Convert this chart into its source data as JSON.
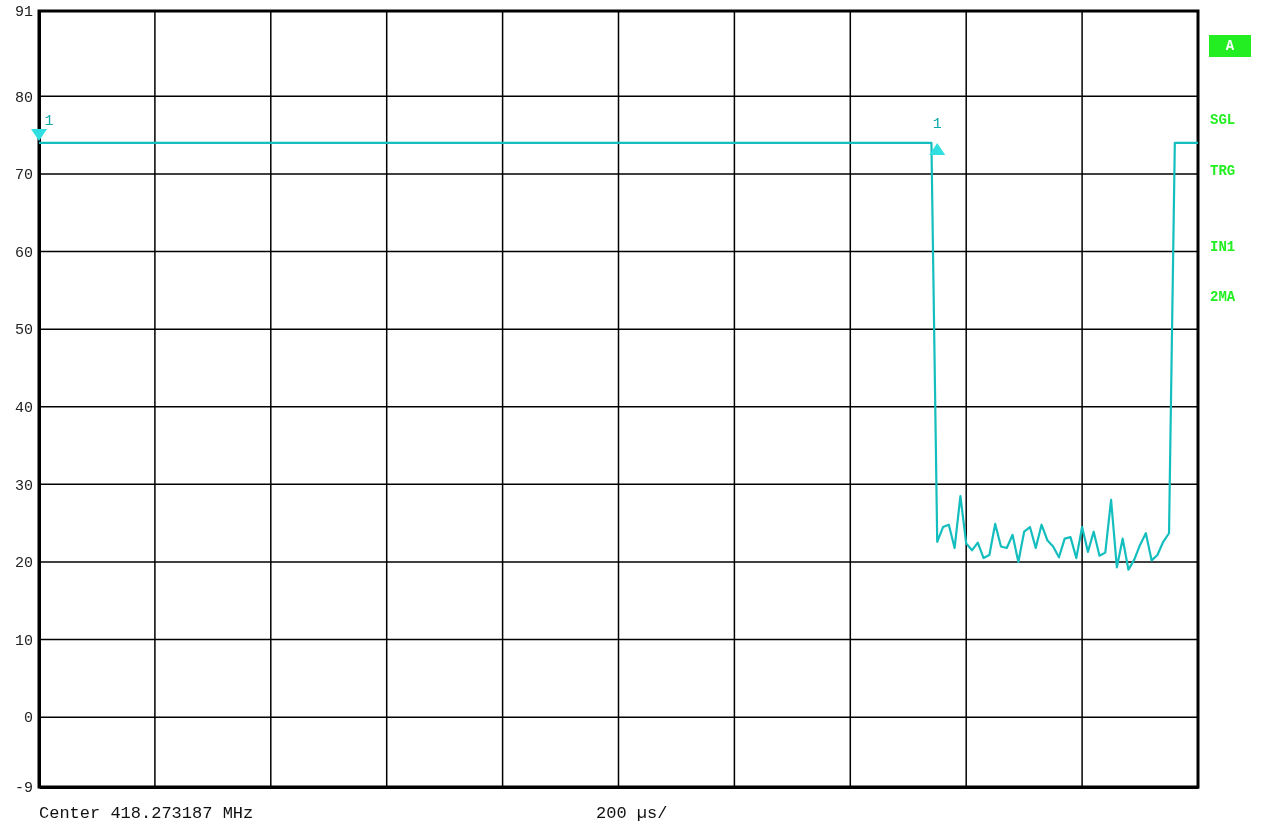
{
  "chart_data": {
    "type": "line",
    "categories": [
      null,
      null,
      null,
      null,
      null,
      null,
      null,
      null,
      null,
      null,
      null,
      null,
      null,
      null,
      null,
      null,
      null,
      null,
      null,
      null,
      null,
      null,
      null,
      null,
      null,
      null,
      null,
      null,
      null,
      null,
      null,
      null,
      null,
      null,
      null,
      null,
      null,
      null,
      null,
      null,
      null,
      null,
      null,
      null,
      null,
      null,
      null,
      null,
      null,
      null,
      null,
      null,
      null,
      null,
      null,
      null,
      null,
      null,
      null,
      null,
      null,
      null,
      null,
      null,
      null,
      null,
      null,
      null,
      null,
      null,
      null,
      null,
      null,
      null,
      null,
      null,
      null,
      null,
      null,
      null,
      null,
      null,
      null,
      null,
      null,
      null,
      null,
      null,
      null,
      null,
      null,
      null,
      null,
      null,
      null,
      null,
      null,
      null,
      null,
      null,
      null,
      null,
      null,
      null,
      null,
      null,
      null,
      null,
      null,
      null,
      null,
      null,
      null,
      null,
      null,
      null,
      null,
      null,
      null,
      null,
      null,
      null,
      null,
      null,
      null,
      null,
      null,
      null,
      null,
      null,
      null,
      null,
      null,
      null,
      null,
      null,
      null,
      null,
      null,
      null,
      null,
      null,
      null,
      null,
      null,
      null,
      null,
      null,
      null,
      null,
      null,
      null,
      null,
      null,
      null,
      null,
      null,
      null,
      null,
      null,
      null,
      null,
      null,
      null,
      null,
      null,
      null,
      null,
      null,
      null,
      null,
      null,
      null,
      null,
      null,
      null,
      null,
      null,
      null,
      null,
      null,
      null,
      null,
      null,
      null,
      null,
      null,
      null,
      null,
      null,
      null,
      null,
      null,
      null,
      null,
      null,
      null,
      null,
      null,
      null,
      null
    ],
    "ylim": [
      -9,
      91
    ],
    "yticks": [
      -9,
      0,
      10,
      20,
      30,
      40,
      50,
      60,
      70,
      80,
      91
    ],
    "tick_labels": "y",
    "grid": true,
    "series": [
      {
        "color": "#14bebe",
        "values": [
          74,
          74,
          74,
          74,
          74,
          74,
          74,
          74,
          74,
          74,
          74,
          74,
          74,
          74,
          74,
          74,
          74,
          74,
          74,
          74,
          74,
          74,
          74,
          74,
          74,
          74,
          74,
          74,
          74,
          74,
          74,
          74,
          74,
          74,
          74,
          74,
          74,
          74,
          74,
          74,
          74,
          74,
          74,
          74,
          74,
          74,
          74,
          74,
          74,
          74,
          74,
          74,
          74,
          74,
          74,
          74,
          74,
          74,
          74,
          74,
          74,
          74,
          74,
          74,
          74,
          74,
          74,
          74,
          74,
          74,
          74,
          74,
          74,
          74,
          74,
          74,
          74,
          74,
          74,
          74,
          74,
          74,
          74,
          74,
          74,
          74,
          74,
          74,
          74,
          74,
          74,
          74,
          74,
          74,
          74,
          74,
          74,
          74,
          74,
          74,
          74,
          74,
          74,
          74,
          74,
          74,
          74,
          74,
          74,
          74,
          74,
          74,
          74,
          74,
          74,
          74,
          74,
          74,
          74,
          74,
          74,
          74,
          74,
          74,
          74,
          74,
          74,
          74,
          74,
          74,
          74,
          74,
          74,
          74,
          74,
          74,
          74,
          74,
          74,
          74,
          74,
          74,
          74,
          74,
          74,
          74,
          74,
          74,
          74,
          74,
          74,
          74,
          74,
          74,
          74,
          22.6,
          24.5,
          24.8,
          21.8,
          28.5,
          22.4,
          21.5,
          22.5,
          20.5,
          20.9,
          24.9,
          22.0,
          21.8,
          23.5,
          20.0,
          23.9,
          24.5,
          21.8,
          24.8,
          22.8,
          22.0,
          20.6,
          23.0,
          23.2,
          20.5,
          24.5,
          21.3,
          23.9,
          20.8,
          21.2,
          28.0,
          19.3,
          23.0,
          19.0,
          20.3,
          22.2,
          23.7,
          20.2,
          20.9,
          22.6,
          23.7,
          74,
          74,
          74,
          74,
          74
        ]
      }
    ],
    "annotations": [
      "Center 418.273187 MHz",
      "200 µs/",
      "A",
      "SGL",
      "TRG",
      "IN1",
      "2MA",
      {
        "text": "1",
        "y": 74
      },
      {
        "text": "1",
        "y": 74
      }
    ]
  }
}
